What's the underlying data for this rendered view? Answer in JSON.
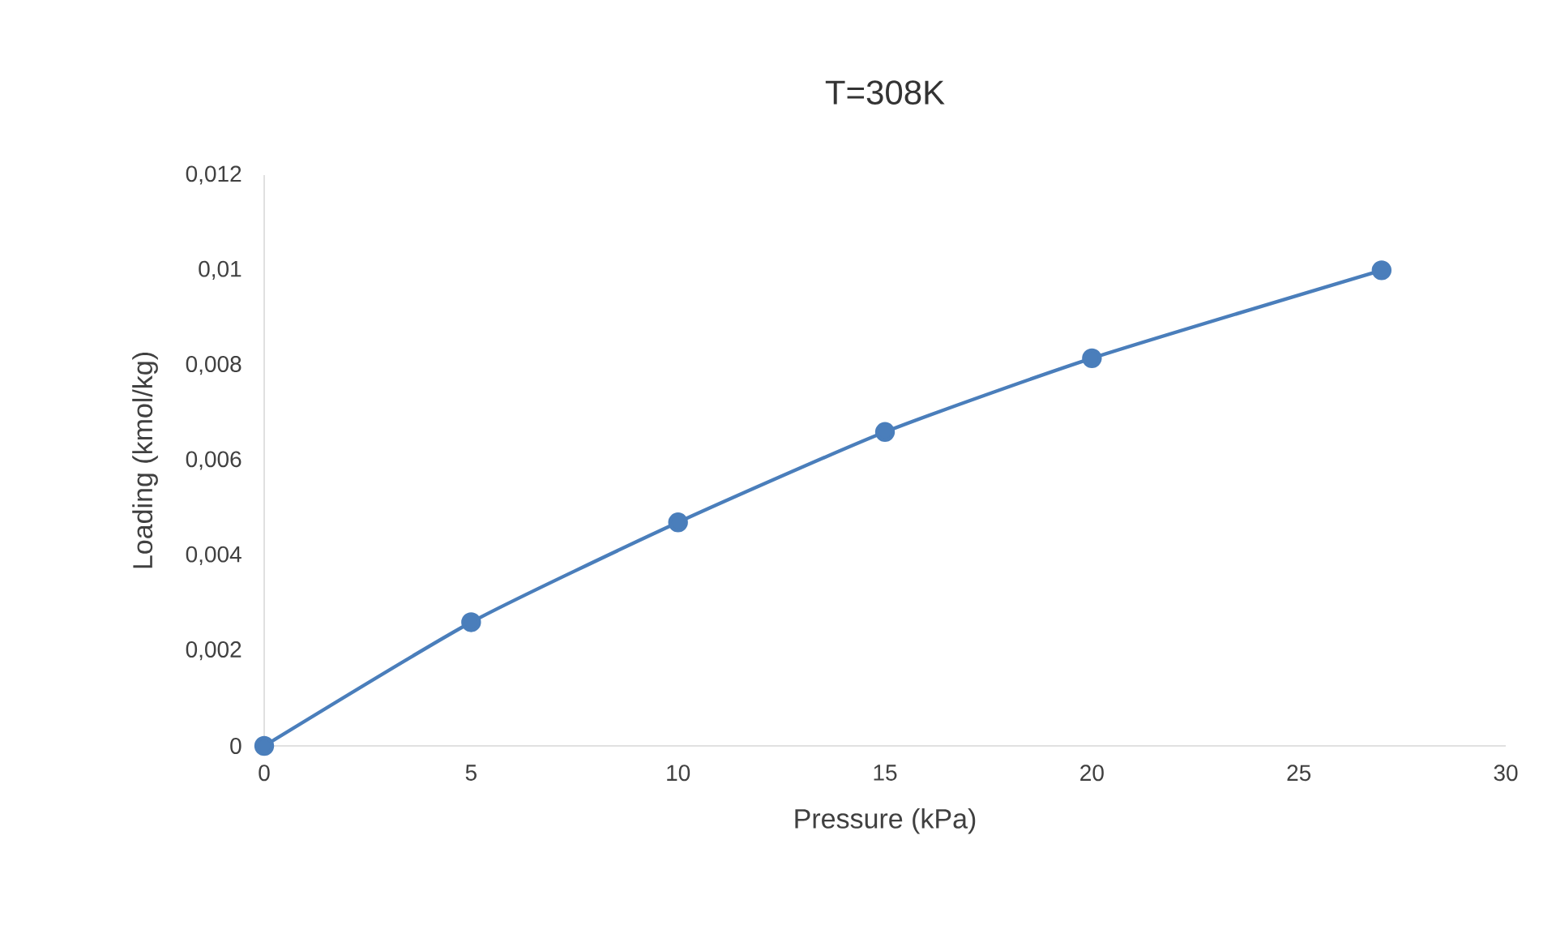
{
  "chart_data": {
    "type": "line",
    "title": "T=308K",
    "xlabel": "Pressure (kPa)",
    "ylabel": "Loading (kmol/kg)",
    "x": [
      0,
      5,
      10,
      15,
      20,
      27
    ],
    "series": [
      {
        "color": "#4a7ebb",
        "values": [
          0,
          0.0026,
          0.0047,
          0.0066,
          0.00815,
          0.01
        ]
      }
    ],
    "xlim": [
      0,
      30
    ],
    "xticks": [
      0,
      5,
      10,
      15,
      20,
      25,
      30
    ],
    "ylim": [
      0,
      0.012
    ],
    "yticks": [
      0,
      {
        "value": 0.002,
        "label": "0,002"
      },
      {
        "value": 0.004,
        "label": "0,004"
      },
      {
        "value": 0.006,
        "label": "0,006"
      },
      {
        "value": 0.008,
        "label": "0,008"
      },
      {
        "value": 0.01,
        "label": "0,01"
      },
      {
        "value": 0.012,
        "label": "0,012"
      }
    ],
    "grid": false,
    "marker": "circle",
    "line_style": "solid"
  }
}
